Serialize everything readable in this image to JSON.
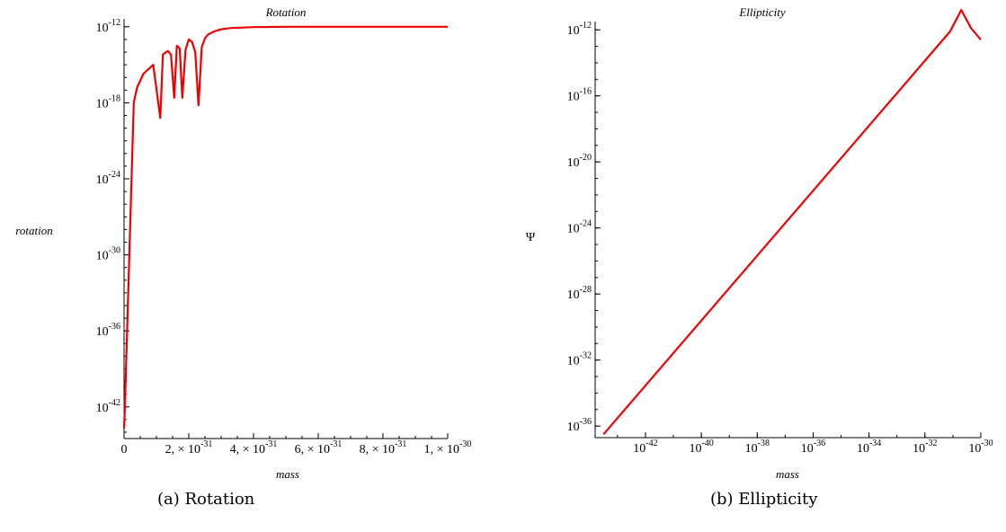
{
  "captions": [
    "(a) Rotation",
    "(b) Ellipticity"
  ],
  "chart_data": [
    {
      "type": "line",
      "title": "Rotation",
      "xlabel": "mass",
      "ylabel": "rotation",
      "xscale": "linear",
      "yscale": "log",
      "xlim": [
        0,
        1e-30
      ],
      "ylim_exp": [
        -44.5,
        -11.8
      ],
      "x_ticks": [
        {
          "value": 0,
          "label": "0"
        },
        {
          "value": 2e-31,
          "mant": "2, × 10",
          "exp": "-31"
        },
        {
          "value": 4e-31,
          "mant": "4, × 10",
          "exp": "-31"
        },
        {
          "value": 6e-31,
          "mant": "6, × 10",
          "exp": "-31"
        },
        {
          "value": 8e-31,
          "mant": "8, × 10",
          "exp": "-31"
        },
        {
          "value": 1e-30,
          "mant": "1, × 10",
          "exp": "-30"
        }
      ],
      "y_ticks": [
        {
          "exp": -12,
          "label": "-12"
        },
        {
          "exp": -18,
          "label": "-18"
        },
        {
          "exp": -24,
          "label": "-24"
        },
        {
          "exp": -30,
          "label": "-30"
        },
        {
          "exp": -36,
          "label": "-36"
        },
        {
          "exp": -42,
          "label": "-42"
        }
      ],
      "color": "#ee0000",
      "series": [
        {
          "x": [
            0,
            2e-33,
            3e-32,
            4e-32,
            6e-32,
            9e-32,
            1.12e-31,
            1.2e-31,
            1.35e-31,
            1.45e-31,
            1.55e-31,
            1.63e-31,
            1.72e-31,
            1.8e-31,
            1.9e-31,
            2e-31,
            2.1e-31,
            2.2e-31,
            2.3e-31,
            2.4e-31,
            2.5e-31,
            2.6e-31,
            2.8e-31,
            3e-31,
            3.3e-31,
            4e-31,
            5e-31,
            6e-31,
            8e-31,
            1e-30
          ],
          "y_exp": [
            -43.7,
            -42.5,
            -18.0,
            -16.8,
            -15.7,
            -15.0,
            -19.2,
            -14.2,
            -13.9,
            -14.2,
            -17.6,
            -13.5,
            -13.7,
            -17.6,
            -13.8,
            -13.0,
            -13.2,
            -14.0,
            -18.2,
            -13.6,
            -12.9,
            -12.6,
            -12.35,
            -12.2,
            -12.1,
            -12.03,
            -12.0,
            -12.0,
            -12.0,
            -12.0
          ]
        }
      ]
    },
    {
      "type": "line",
      "title": "Ellipticity",
      "xlabel": "mass",
      "ylabel": "Ψ",
      "xscale": "log",
      "yscale": "log",
      "xlim_exp": [
        -43.8,
        -30.0
      ],
      "ylim_exp": [
        -36.7,
        -11.5
      ],
      "x_ticks": [
        {
          "exp": -42,
          "label": "-42"
        },
        {
          "exp": -40,
          "label": "-40"
        },
        {
          "exp": -38,
          "label": "-38"
        },
        {
          "exp": -36,
          "label": "-36"
        },
        {
          "exp": -34,
          "label": "-34"
        },
        {
          "exp": -32,
          "label": "-32"
        },
        {
          "exp": -30,
          "label": "-30"
        }
      ],
      "y_ticks": [
        {
          "exp": -12,
          "label": "-12"
        },
        {
          "exp": -16,
          "label": "-16"
        },
        {
          "exp": -20,
          "label": "-20"
        },
        {
          "exp": -24,
          "label": "-24"
        },
        {
          "exp": -28,
          "label": "-28"
        },
        {
          "exp": -32,
          "label": "-32"
        },
        {
          "exp": -36,
          "label": "-36"
        }
      ],
      "color": "#ee0000",
      "series": [
        {
          "x_exp": [
            -43.5,
            -31.1,
            -30.7,
            -30.35,
            -30.0
          ],
          "y_exp": [
            -36.5,
            -12.1,
            -10.8,
            -11.9,
            -12.6
          ]
        }
      ]
    }
  ]
}
